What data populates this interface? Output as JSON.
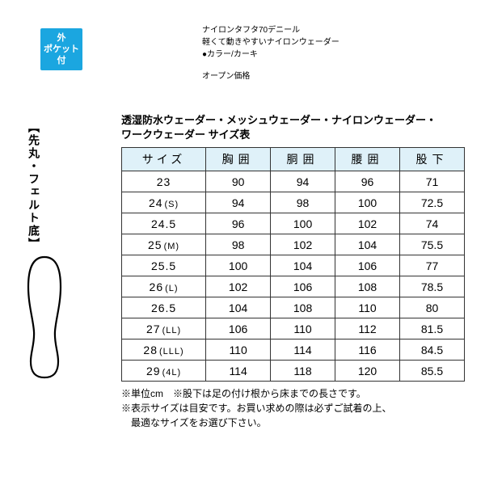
{
  "badge": {
    "line1": "外",
    "line2": "ポケット",
    "line3": "付"
  },
  "desc": {
    "line1": "ナイロンタフタ70デニール",
    "line2": "軽くて動きやすいナイロンウェーダー",
    "line3": "●カラー/カーキ",
    "price": "オープン価格"
  },
  "side_label": "【先丸・フェルト底】",
  "table_title_l1": "透湿防水ウェーダー・メッシュウェーダー・ナイロンウェーダー・",
  "table_title_l2": "ワークウェーダー サイズ表",
  "columns": [
    "サイズ",
    "胸囲",
    "胴囲",
    "腰囲",
    "股下"
  ],
  "rows": [
    {
      "size": "23",
      "sub": "",
      "v": [
        "90",
        "94",
        "96",
        "71"
      ]
    },
    {
      "size": "24",
      "sub": "(S)",
      "v": [
        "94",
        "98",
        "100",
        "72.5"
      ]
    },
    {
      "size": "24.5",
      "sub": "",
      "v": [
        "96",
        "100",
        "102",
        "74"
      ]
    },
    {
      "size": "25",
      "sub": "(M)",
      "v": [
        "98",
        "102",
        "104",
        "75.5"
      ]
    },
    {
      "size": "25.5",
      "sub": "",
      "v": [
        "100",
        "104",
        "106",
        "77"
      ]
    },
    {
      "size": "26",
      "sub": "(L)",
      "v": [
        "102",
        "106",
        "108",
        "78.5"
      ]
    },
    {
      "size": "26.5",
      "sub": "",
      "v": [
        "104",
        "108",
        "110",
        "80"
      ]
    },
    {
      "size": "27",
      "sub": "(LL)",
      "v": [
        "106",
        "110",
        "112",
        "81.5"
      ]
    },
    {
      "size": "28",
      "sub": "(LLL)",
      "v": [
        "110",
        "114",
        "116",
        "84.5"
      ]
    },
    {
      "size": "29",
      "sub": "(4L)",
      "v": [
        "114",
        "118",
        "120",
        "85.5"
      ]
    }
  ],
  "note1": "※単位cm　※股下は足の付け根から床までの長さです。",
  "note2": "※表示サイズは目安です。お買い求めの際は必ずご試着の上、",
  "note3": "　最適なサイズをお選び下さい。",
  "colors": {
    "badge_bg": "#1ba6e0",
    "header_bg": "#dff1f9",
    "border": "#333333"
  }
}
